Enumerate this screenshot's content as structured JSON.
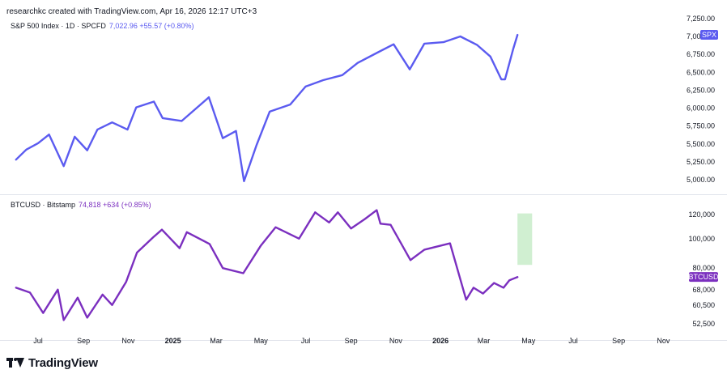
{
  "header": {
    "credit": "researchkc created with TradingView.com, Apr 16, 2026 12:17 UTC+3"
  },
  "brand": {
    "name": "TradingView",
    "icon": "tradingview-logo-icon"
  },
  "colors": {
    "spx": "#5b5bf0",
    "btc": "#7b2fbf",
    "projection": "#c8ecc9"
  },
  "chart_data": [
    {
      "type": "line",
      "pane": "top",
      "legend": {
        "symbol": "S&P 500 Index · 1D · SPCFD",
        "value": "7,022.96 +55.57 (+0.80%)"
      },
      "price_tag": "SPX",
      "y_ticks": [
        {
          "value": 7250,
          "label": "7,250.00"
        },
        {
          "value": 7000,
          "label": "7,000.00"
        },
        {
          "value": 6750,
          "label": "6,750.00"
        },
        {
          "value": 6500,
          "label": "6,500.00"
        },
        {
          "value": 6250,
          "label": "6,250.00"
        },
        {
          "value": 6000,
          "label": "6,000.00"
        },
        {
          "value": 5750,
          "label": "5,750.00"
        },
        {
          "value": 5500,
          "label": "5,500.00"
        },
        {
          "value": 5250,
          "label": "5,250.00"
        },
        {
          "value": 5000,
          "label": "5,000.00"
        }
      ],
      "ylim": [
        4900,
        7300
      ],
      "x": [
        "2024-06-01",
        "2024-06-15",
        "2024-07-01",
        "2024-07-16",
        "2024-08-05",
        "2024-08-20",
        "2024-09-06",
        "2024-09-20",
        "2024-10-10",
        "2024-10-31",
        "2024-11-12",
        "2024-12-06",
        "2024-12-18",
        "2025-01-13",
        "2025-02-19",
        "2025-03-10",
        "2025-03-28",
        "2025-04-08",
        "2025-04-25",
        "2025-05-13",
        "2025-06-10",
        "2025-07-01",
        "2025-07-25",
        "2025-08-20",
        "2025-09-10",
        "2025-10-08",
        "2025-10-29",
        "2025-11-20",
        "2025-12-10",
        "2026-01-05",
        "2026-01-28",
        "2026-02-20",
        "2026-03-10",
        "2026-03-25",
        "2026-03-30",
        "2026-04-10",
        "2026-04-16"
      ],
      "values": [
        5280,
        5420,
        5510,
        5630,
        5190,
        5600,
        5410,
        5700,
        5800,
        5700,
        6010,
        6090,
        5860,
        5820,
        6150,
        5580,
        5680,
        4980,
        5480,
        5950,
        6050,
        6300,
        6390,
        6460,
        6630,
        6780,
        6890,
        6540,
        6900,
        6920,
        7000,
        6880,
        6720,
        6400,
        6400,
        6820,
        7022
      ]
    },
    {
      "type": "line",
      "pane": "bottom",
      "legend": {
        "symbol": "BTCUSD · Bitstamp",
        "value": "74,818 +634 (+0.85%)"
      },
      "price_tag": "BTCUSD",
      "y_ticks": [
        {
          "value": 120000,
          "label": "120,000"
        },
        {
          "value": 100000,
          "label": "100,000"
        },
        {
          "value": 80000,
          "label": "80,000"
        },
        {
          "value": 68000,
          "label": "68,000"
        },
        {
          "value": 60500,
          "label": "60,500"
        },
        {
          "value": 52500,
          "label": "52,500"
        }
      ],
      "ylim": [
        50000,
        130000
      ],
      "log_scale": true,
      "x": [
        "2024-06-01",
        "2024-06-20",
        "2024-07-08",
        "2024-07-28",
        "2024-08-05",
        "2024-08-24",
        "2024-09-06",
        "2024-09-27",
        "2024-10-10",
        "2024-10-29",
        "2024-11-13",
        "2024-12-05",
        "2024-12-17",
        "2025-01-10",
        "2025-01-20",
        "2025-02-20",
        "2025-03-10",
        "2025-04-07",
        "2025-05-01",
        "2025-05-21",
        "2025-06-22",
        "2025-07-14",
        "2025-08-02",
        "2025-08-14",
        "2025-09-01",
        "2025-09-20",
        "2025-10-06",
        "2025-10-11",
        "2025-10-25",
        "2025-11-21",
        "2025-12-10",
        "2026-01-14",
        "2026-02-05",
        "2026-02-15",
        "2026-02-28",
        "2026-03-15",
        "2026-03-28",
        "2026-04-05",
        "2026-04-16"
      ],
      "values": [
        69000,
        66500,
        57000,
        68000,
        54000,
        64000,
        55000,
        65500,
        60500,
        72000,
        90000,
        101000,
        107000,
        93000,
        105000,
        96000,
        80000,
        77000,
        95000,
        109000,
        100000,
        122000,
        113000,
        122000,
        108000,
        116000,
        124000,
        112000,
        111000,
        85000,
        92000,
        96500,
        63000,
        69000,
        66000,
        71500,
        69000,
        73000,
        74818
      ]
    }
  ],
  "projection_box": {
    "x_start": "2026-04-16",
    "x_end": "2026-05-06",
    "y_low": 82000,
    "y_high": 121000
  },
  "x_ticks": [
    {
      "date": "2024-07-01",
      "label": "Jul",
      "bold": false
    },
    {
      "date": "2024-09-01",
      "label": "Sep",
      "bold": false
    },
    {
      "date": "2024-11-01",
      "label": "Nov",
      "bold": false
    },
    {
      "date": "2025-01-01",
      "label": "2025",
      "bold": true
    },
    {
      "date": "2025-03-01",
      "label": "Mar",
      "bold": false
    },
    {
      "date": "2025-05-01",
      "label": "May",
      "bold": false
    },
    {
      "date": "2025-07-01",
      "label": "Jul",
      "bold": false
    },
    {
      "date": "2025-09-01",
      "label": "Sep",
      "bold": false
    },
    {
      "date": "2025-11-01",
      "label": "Nov",
      "bold": false
    },
    {
      "date": "2026-01-01",
      "label": "2026",
      "bold": true
    },
    {
      "date": "2026-03-01",
      "label": "Mar",
      "bold": false
    },
    {
      "date": "2026-05-01",
      "label": "May",
      "bold": false
    },
    {
      "date": "2026-07-01",
      "label": "Jul",
      "bold": false
    },
    {
      "date": "2026-09-01",
      "label": "Sep",
      "bold": false
    },
    {
      "date": "2026-11-01",
      "label": "Nov",
      "bold": false
    }
  ]
}
